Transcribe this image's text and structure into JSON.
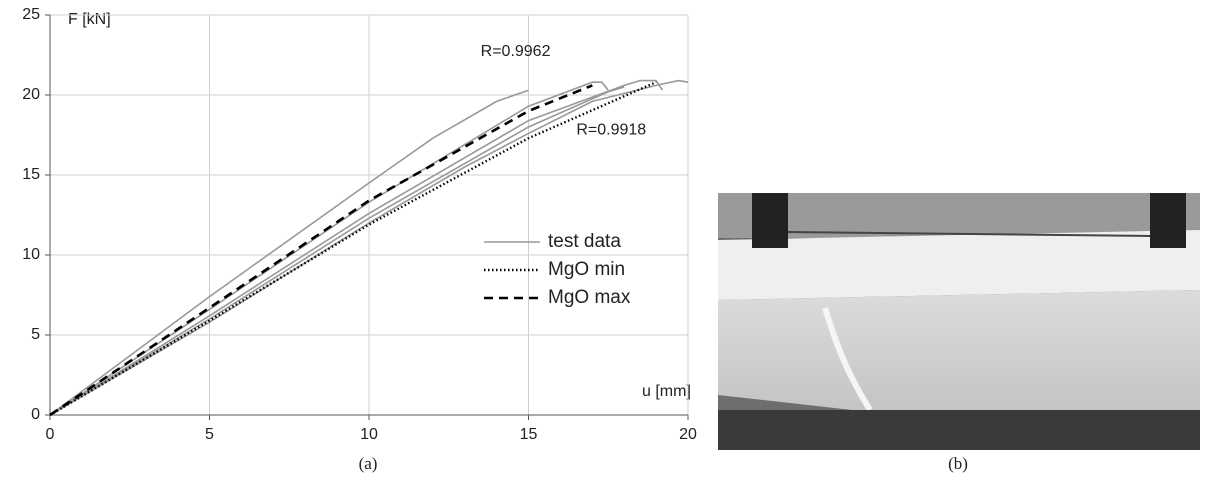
{
  "chart_data": {
    "type": "line",
    "xlabel": "u [mm]",
    "ylabel": "F [kN]",
    "xlim": [
      0,
      20
    ],
    "xticks": [
      0,
      5,
      10,
      15,
      20
    ],
    "ylim": [
      0,
      25
    ],
    "yticks": [
      0,
      5,
      10,
      15,
      20,
      25
    ],
    "grid": true,
    "legend": "right",
    "series": [
      {
        "name": "test data",
        "color": "#999999",
        "dash": "solid",
        "lines": [
          {
            "x": [
              0,
              5,
              10,
              12,
              14,
              15
            ],
            "values": [
              0,
              7.4,
              14.5,
              17.3,
              19.6,
              20.3
            ]
          },
          {
            "x": [
              0,
              5,
              10,
              15,
              17,
              17.3,
              17.5
            ],
            "values": [
              0,
              6.6,
              13.3,
              19.3,
              20.8,
              20.8,
              20.3
            ]
          },
          {
            "x": [
              0,
              5,
              10,
              15,
              18,
              18.5,
              19,
              19.2
            ],
            "values": [
              0,
              6.2,
              12.6,
              18.4,
              20.6,
              20.9,
              20.9,
              20.3
            ]
          },
          {
            "x": [
              0,
              5,
              10,
              13,
              15,
              17,
              19,
              19.7,
              20
            ],
            "values": [
              0,
              5.8,
              12.0,
              15.5,
              17.6,
              19.6,
              20.6,
              20.9,
              20.8
            ]
          },
          {
            "x": [
              0,
              5,
              10,
              15,
              17.5,
              18
            ],
            "values": [
              0,
              6.0,
              12.3,
              18.0,
              20.2,
              20.5
            ]
          }
        ]
      },
      {
        "name": "MgO min",
        "color": "#000000",
        "dash": "dotted",
        "x": [
          0,
          5,
          10,
          15,
          19
        ],
        "values": [
          0,
          5.9,
          11.9,
          17.3,
          20.8
        ]
      },
      {
        "name": "MgO max",
        "color": "#000000",
        "dash": "dashed",
        "x": [
          0,
          5,
          10,
          15,
          17
        ],
        "values": [
          0,
          6.7,
          13.4,
          19.0,
          20.6
        ]
      }
    ],
    "annotations": [
      {
        "text": "R=0.9962",
        "x": 13.5,
        "y": 22.7
      },
      {
        "text": "R=0.9918",
        "x": 16.5,
        "y": 17.8
      }
    ]
  },
  "captions": [
    "(a)",
    "(b)"
  ]
}
